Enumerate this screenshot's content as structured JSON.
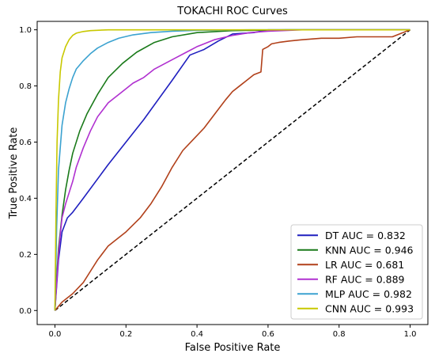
{
  "chart_data": {
    "type": "line",
    "title": "TOKACHI ROC Curves",
    "xlabel": "False Positive Rate",
    "ylabel": "True Positive Rate",
    "xlim": [
      -0.05,
      1.05
    ],
    "ylim": [
      -0.05,
      1.03
    ],
    "xticks": [
      "0.0",
      "0.2",
      "0.4",
      "0.6",
      "0.8",
      "1.0"
    ],
    "yticks": [
      "0.0",
      "0.2",
      "0.4",
      "0.6",
      "0.8",
      "1.0"
    ],
    "grid": false,
    "legend_position": "bottom-right",
    "reference_line": {
      "style": "dashed",
      "color": "#000000",
      "x": [
        0,
        1
      ],
      "y": [
        0,
        1
      ]
    },
    "series": [
      {
        "name": "DT AUC = 0.832",
        "color": "#1f1fbf",
        "x": [
          0,
          0.01,
          0.02,
          0.035,
          0.05,
          0.08,
          0.15,
          0.25,
          0.33,
          0.38,
          0.42,
          0.46,
          0.5,
          0.56,
          0.6,
          0.7,
          0.85,
          1.0
        ],
        "y": [
          0,
          0.18,
          0.28,
          0.33,
          0.35,
          0.4,
          0.52,
          0.68,
          0.82,
          0.91,
          0.93,
          0.96,
          0.985,
          0.99,
          1.0,
          1.0,
          1.0,
          1.0
        ]
      },
      {
        "name": "KNN AUC = 0.946",
        "color": "#1a7a1a",
        "x": [
          0,
          0.005,
          0.01,
          0.02,
          0.03,
          0.04,
          0.05,
          0.07,
          0.09,
          0.12,
          0.15,
          0.19,
          0.23,
          0.28,
          0.33,
          0.4,
          0.5,
          0.65,
          0.8,
          1.0
        ],
        "y": [
          0,
          0.12,
          0.22,
          0.34,
          0.43,
          0.5,
          0.56,
          0.64,
          0.7,
          0.77,
          0.83,
          0.88,
          0.92,
          0.955,
          0.975,
          0.99,
          0.997,
          1.0,
          1.0,
          1.0
        ]
      },
      {
        "name": "LR AUC = 0.681",
        "color": "#b1401a",
        "x": [
          0,
          0.02,
          0.05,
          0.08,
          0.1,
          0.12,
          0.15,
          0.17,
          0.2,
          0.24,
          0.27,
          0.3,
          0.33,
          0.36,
          0.39,
          0.42,
          0.45,
          0.48,
          0.5,
          0.52,
          0.54,
          0.56,
          0.58,
          0.585,
          0.6,
          0.61,
          0.63,
          0.66,
          0.7,
          0.75,
          0.8,
          0.85,
          0.9,
          0.95,
          1.0
        ],
        "y": [
          0,
          0.03,
          0.06,
          0.1,
          0.14,
          0.18,
          0.23,
          0.25,
          0.28,
          0.33,
          0.38,
          0.44,
          0.51,
          0.57,
          0.61,
          0.65,
          0.7,
          0.75,
          0.78,
          0.8,
          0.82,
          0.84,
          0.85,
          0.93,
          0.94,
          0.95,
          0.955,
          0.96,
          0.965,
          0.97,
          0.97,
          0.975,
          0.975,
          0.975,
          1.0
        ]
      },
      {
        "name": "RF AUC = 0.889",
        "color": "#b030d0",
        "x": [
          0,
          0.005,
          0.01,
          0.015,
          0.02,
          0.03,
          0.04,
          0.05,
          0.06,
          0.08,
          0.1,
          0.12,
          0.15,
          0.18,
          0.2,
          0.22,
          0.25,
          0.28,
          0.31,
          0.34,
          0.37,
          0.4,
          0.45,
          0.5,
          0.55,
          0.6,
          0.7,
          0.85,
          1.0
        ],
        "y": [
          0,
          0.1,
          0.2,
          0.27,
          0.33,
          0.38,
          0.42,
          0.46,
          0.51,
          0.58,
          0.64,
          0.69,
          0.74,
          0.77,
          0.79,
          0.81,
          0.83,
          0.86,
          0.88,
          0.9,
          0.92,
          0.94,
          0.965,
          0.98,
          0.99,
          0.995,
          1.0,
          1.0,
          1.0
        ]
      },
      {
        "name": "MLP AUC = 0.982",
        "color": "#3ba2d0",
        "x": [
          0,
          0.005,
          0.01,
          0.02,
          0.03,
          0.04,
          0.05,
          0.06,
          0.08,
          0.1,
          0.12,
          0.15,
          0.18,
          0.22,
          0.27,
          0.33,
          0.4,
          0.55,
          0.7,
          1.0
        ],
        "y": [
          0,
          0.3,
          0.5,
          0.66,
          0.74,
          0.79,
          0.83,
          0.86,
          0.89,
          0.915,
          0.935,
          0.955,
          0.97,
          0.982,
          0.99,
          0.995,
          0.998,
          1.0,
          1.0,
          1.0
        ]
      },
      {
        "name": "CNN AUC = 0.993",
        "color": "#c8c800",
        "x": [
          0,
          0.003,
          0.006,
          0.01,
          0.015,
          0.02,
          0.03,
          0.04,
          0.05,
          0.06,
          0.08,
          0.1,
          0.15,
          0.25,
          0.4,
          0.6,
          1.0
        ],
        "y": [
          0,
          0.35,
          0.6,
          0.75,
          0.85,
          0.9,
          0.94,
          0.965,
          0.98,
          0.988,
          0.994,
          0.997,
          1.0,
          1.0,
          1.0,
          1.0,
          1.0
        ]
      }
    ]
  }
}
